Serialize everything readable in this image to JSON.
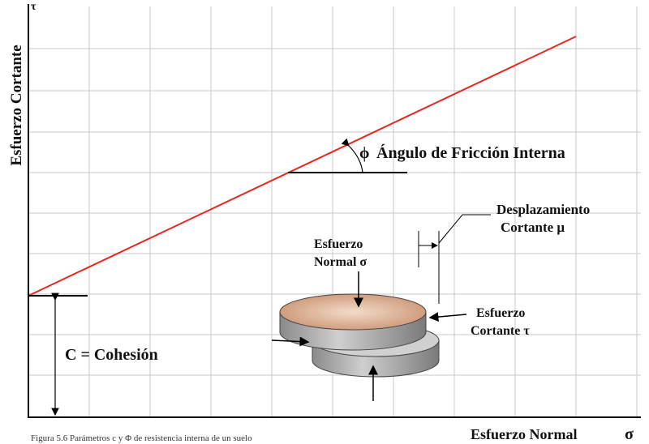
{
  "diagram": {
    "y_axis_symbol": "τ",
    "y_axis_label": "Esfuerzo Cortante",
    "x_axis_label": "Esfuerzo Normal",
    "x_axis_symbol": "σ",
    "friction_angle": {
      "symbol": "ϕ",
      "label": "Ángulo de Fricción Interna"
    },
    "shear_displacement": {
      "line1": "Desplazamiento",
      "line2": "Cortante  μ"
    },
    "normal_stress": {
      "line1": "Esfuerzo",
      "line2": "Normal σ"
    },
    "shear_stress": {
      "line1": "Esfuerzo",
      "line2": "Cortante τ"
    },
    "cohesion": "C = Cohesión",
    "caption": "Figura 5.6 Parámetros c y Φ de resistencia interna de un suelo"
  }
}
